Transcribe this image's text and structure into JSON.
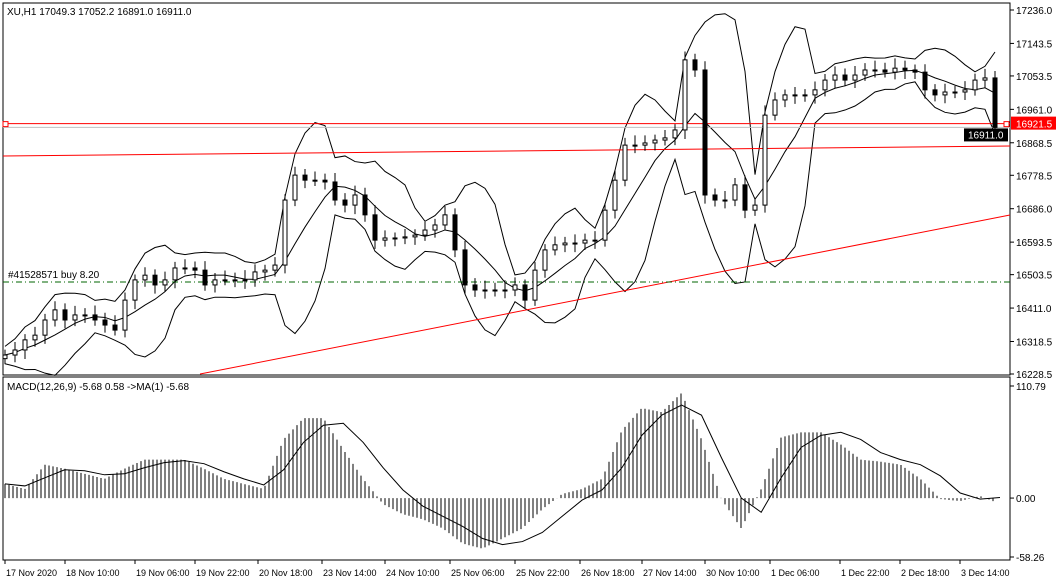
{
  "header": {
    "symbol_info": "XU,H1  17049.3 17052.2 16891.0 16911.0"
  },
  "macd_header": "MACD(12,26,9) -5.68 0.58  ->MA(1) -5.68",
  "order_label": "#41528571 buy 8.20",
  "price_axis": [
    "17236.0",
    "17143.5",
    "17053.5",
    "16961.0",
    "16868.5",
    "16778.5",
    "16686.0",
    "16593.5",
    "16503.5",
    "16411.0",
    "16318.5",
    "16228.5"
  ],
  "macd_axis": [
    "110.79",
    "0.00",
    "-58.26"
  ],
  "time_axis": [
    "17 Nov 2020",
    "18 Nov 10:00",
    "19 Nov 06:00",
    "19 Nov 22:00",
    "20 Nov 18:00",
    "23 Nov 14:00",
    "24 Nov 10:00",
    "25 Nov 06:00",
    "25 Nov 22:00",
    "26 Nov 18:00",
    "27 Nov 14:00",
    "30 Nov 10:00",
    "1 Dec 06:00",
    "1 Dec 22:00",
    "2 Dec 18:00",
    "3 Dec 14:00"
  ],
  "marked_price": "16921.5",
  "bid_price": "16911.0",
  "colors": {
    "level_line": "#ff0000",
    "price_tag": "#ff0000",
    "order_line": "#006400",
    "candles": "#000000"
  },
  "chart_data": [
    {
      "type": "candlestick",
      "symbol": "XU",
      "timeframe": "H1",
      "ylim": [
        16228.5,
        17236.0
      ],
      "closes": [
        16281,
        16295,
        16323,
        16336,
        16378,
        16406,
        16378,
        16392,
        16392,
        16378,
        16364,
        16350,
        16433,
        16489,
        16502,
        16475,
        16489,
        16522,
        16522,
        16516,
        16475,
        16489,
        16489,
        16489,
        16489,
        16511,
        16516,
        16530,
        16710,
        16779,
        16765,
        16765,
        16760,
        16710,
        16696,
        16724,
        16669,
        16599,
        16605,
        16605,
        16608,
        16613,
        16627,
        16641,
        16669,
        16572,
        16475,
        16461,
        16461,
        16461,
        16461,
        16475,
        16433,
        16516,
        16572,
        16586,
        16591,
        16591,
        16599,
        16599,
        16682,
        16765,
        16862,
        16862,
        16868,
        16876,
        16882,
        16904,
        17098,
        17070,
        16724,
        16710,
        16710,
        16752,
        16682,
        16696,
        16945,
        16987,
        17001,
        17001,
        17001,
        17015,
        17042,
        17056,
        17042,
        17056,
        17070,
        17070,
        17064,
        17075,
        17070,
        17064,
        17015,
        17001,
        17009,
        17009,
        17015,
        17042,
        17048,
        16911
      ],
      "horizontal_levels": [
        16921.5,
        16483
      ],
      "grid": false
    },
    {
      "type": "bar",
      "indicator": "MACD(12,26,9)",
      "ylim": [
        -58.26,
        110.79
      ],
      "macd": [
        14,
        9,
        33,
        29,
        24,
        19,
        29,
        38,
        38,
        38,
        29,
        19,
        14,
        9,
        58,
        79,
        79,
        48,
        19,
        -6,
        -16,
        -21,
        -30,
        -45,
        -50,
        -40,
        -30,
        -11,
        4,
        9,
        19,
        67,
        89,
        85,
        104,
        58,
        -1,
        -30,
        9,
        60,
        65,
        65,
        53,
        38,
        36,
        33,
        19,
        -1,
        -3,
        2,
        -5.68
      ],
      "signal": [
        14,
        12,
        20,
        28,
        27,
        23,
        24,
        30,
        35,
        37,
        34,
        26,
        19,
        13,
        28,
        55,
        72,
        74,
        55,
        30,
        8,
        -8,
        -18,
        -28,
        -40,
        -46,
        -43,
        -34,
        -18,
        -2,
        8,
        30,
        62,
        82,
        92,
        82,
        40,
        0,
        -14,
        20,
        50,
        62,
        65,
        58,
        45,
        38,
        33,
        22,
        5,
        -1,
        0.58
      ]
    }
  ]
}
